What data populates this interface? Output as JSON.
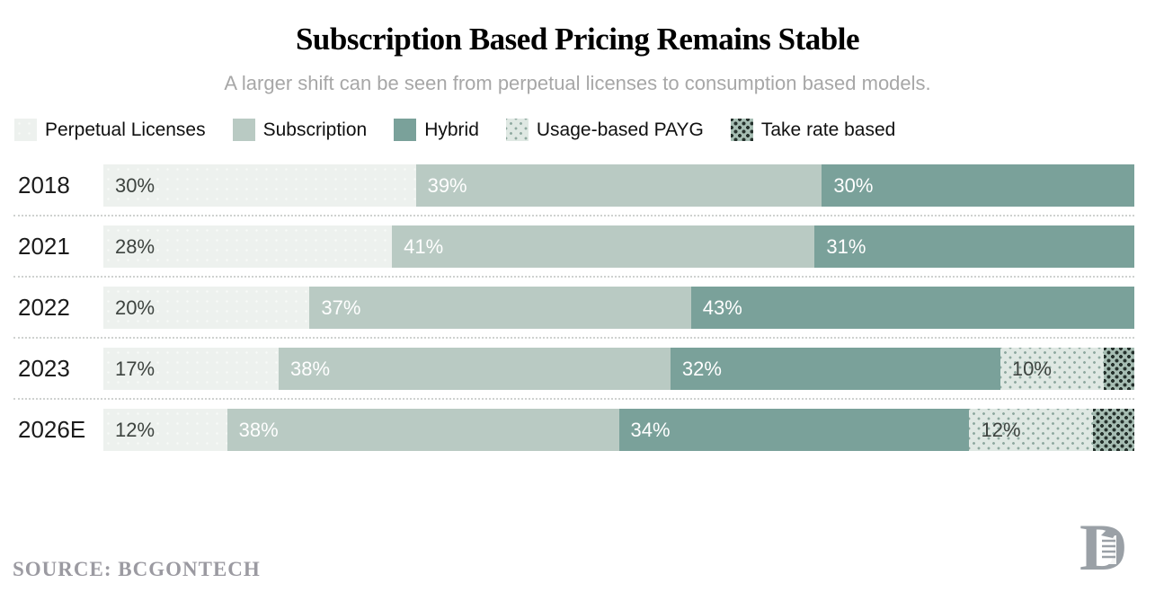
{
  "title": "Subscription Based Pricing Remains Stable",
  "subtitle": "A larger shift can be seen from perpetual licenses to consumption based models.",
  "source": "SOURCE: BCGONTECH",
  "logo_icon": "monogram-d-scroll",
  "colors": {
    "perpetual": "#edf1ee",
    "subscription": "#b9cac3",
    "hybrid": "#7aa19a",
    "usage_bg": "#dfe8e3",
    "usage_dot": "#8fa9a0",
    "take_bg": "#a6bdb3",
    "take_dot": "#25312c",
    "label_dark": "#3d433f",
    "label_light": "#ffffff",
    "subtitle_gray": "#a7a7a7",
    "source_gray": "#9b9aa1"
  },
  "legend": {
    "items": [
      {
        "label": "Perpetual Licenses",
        "pattern": "perpetual"
      },
      {
        "label": "Subscription",
        "pattern": "subscription"
      },
      {
        "label": "Hybrid",
        "pattern": "hybrid"
      },
      {
        "label": "Usage-based PAYG",
        "pattern": "usage"
      },
      {
        "label": "Take rate based",
        "pattern": "take"
      }
    ]
  },
  "chart_data": {
    "type": "bar",
    "orientation": "horizontal",
    "stacked": true,
    "unit": "%",
    "x_range": [
      0,
      100
    ],
    "grid": false,
    "legend_position": "top-left",
    "categories": [
      "2018",
      "2021",
      "2022",
      "2023",
      "2026E"
    ],
    "series": [
      {
        "name": "Perpetual Licenses",
        "values": [
          30,
          28,
          20,
          17,
          12
        ]
      },
      {
        "name": "Subscription",
        "values": [
          39,
          41,
          37,
          38,
          38
        ]
      },
      {
        "name": "Hybrid",
        "values": [
          30,
          31,
          43,
          32,
          34
        ]
      },
      {
        "name": "Usage-based PAYG",
        "values": [
          0,
          0,
          0,
          10,
          12
        ]
      },
      {
        "name": "Take rate based",
        "values": [
          0,
          0,
          0,
          3,
          4
        ]
      }
    ],
    "title": "Subscription Based Pricing Remains Stable",
    "xlabel": "",
    "ylabel": ""
  },
  "rows": [
    {
      "year": "2018",
      "segments": [
        {
          "series": "Perpetual Licenses",
          "pattern": "perpetual",
          "value": 30,
          "label": "30%",
          "label_tone": "dark"
        },
        {
          "series": "Subscription",
          "pattern": "subscription",
          "value": 39,
          "label": "39%",
          "label_tone": "light"
        },
        {
          "series": "Hybrid",
          "pattern": "hybrid",
          "value": 30,
          "label": "30%",
          "label_tone": "light"
        }
      ]
    },
    {
      "year": "2021",
      "segments": [
        {
          "series": "Perpetual Licenses",
          "pattern": "perpetual",
          "value": 28,
          "label": "28%",
          "label_tone": "dark"
        },
        {
          "series": "Subscription",
          "pattern": "subscription",
          "value": 41,
          "label": "41%",
          "label_tone": "light"
        },
        {
          "series": "Hybrid",
          "pattern": "hybrid",
          "value": 31,
          "label": "31%",
          "label_tone": "light"
        }
      ]
    },
    {
      "year": "2022",
      "segments": [
        {
          "series": "Perpetual Licenses",
          "pattern": "perpetual",
          "value": 20,
          "label": "20%",
          "label_tone": "dark"
        },
        {
          "series": "Subscription",
          "pattern": "subscription",
          "value": 37,
          "label": "37%",
          "label_tone": "light"
        },
        {
          "series": "Hybrid",
          "pattern": "hybrid",
          "value": 43,
          "label": "43%",
          "label_tone": "light"
        }
      ]
    },
    {
      "year": "2023",
      "segments": [
        {
          "series": "Perpetual Licenses",
          "pattern": "perpetual",
          "value": 17,
          "label": "17%",
          "label_tone": "dark"
        },
        {
          "series": "Subscription",
          "pattern": "subscription",
          "value": 38,
          "label": "38%",
          "label_tone": "light"
        },
        {
          "series": "Hybrid",
          "pattern": "hybrid",
          "value": 32,
          "label": "32%",
          "label_tone": "light"
        },
        {
          "series": "Usage-based PAYG",
          "pattern": "usage",
          "value": 10,
          "label": "10%",
          "label_tone": "dark"
        },
        {
          "series": "Take rate based",
          "pattern": "take",
          "value": 3,
          "label": "",
          "label_tone": "dark"
        }
      ]
    },
    {
      "year": "2026E",
      "segments": [
        {
          "series": "Perpetual Licenses",
          "pattern": "perpetual",
          "value": 12,
          "label": "12%",
          "label_tone": "dark"
        },
        {
          "series": "Subscription",
          "pattern": "subscription",
          "value": 38,
          "label": "38%",
          "label_tone": "light"
        },
        {
          "series": "Hybrid",
          "pattern": "hybrid",
          "value": 34,
          "label": "34%",
          "label_tone": "light"
        },
        {
          "series": "Usage-based PAYG",
          "pattern": "usage",
          "value": 12,
          "label": "12%",
          "label_tone": "dark"
        },
        {
          "series": "Take rate based",
          "pattern": "take",
          "value": 4,
          "label": "",
          "label_tone": "dark"
        }
      ]
    }
  ]
}
